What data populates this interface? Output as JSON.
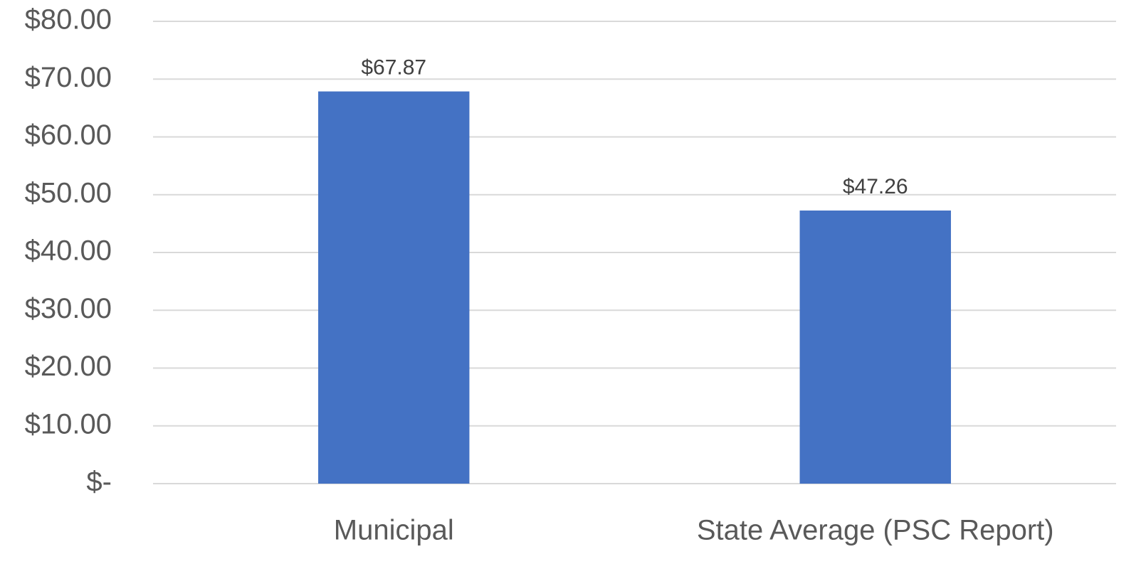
{
  "chart_data": {
    "type": "bar",
    "categories": [
      "Municipal",
      "State Average (PSC Report)"
    ],
    "values": [
      67.87,
      47.26
    ],
    "value_labels": [
      "$67.87",
      "$47.26"
    ],
    "color": "#4472c4",
    "ylim": [
      0,
      80
    ],
    "yticks": [
      {
        "value": 0,
        "label": "$-"
      },
      {
        "value": 10,
        "label": "$10.00"
      },
      {
        "value": 20,
        "label": "$20.00"
      },
      {
        "value": 30,
        "label": "$30.00"
      },
      {
        "value": 40,
        "label": "$40.00"
      },
      {
        "value": 50,
        "label": "$50.00"
      },
      {
        "value": 60,
        "label": "$60.00"
      },
      {
        "value": 70,
        "label": "$70.00"
      },
      {
        "value": 80,
        "label": "$80.00"
      }
    ],
    "grid": true
  }
}
